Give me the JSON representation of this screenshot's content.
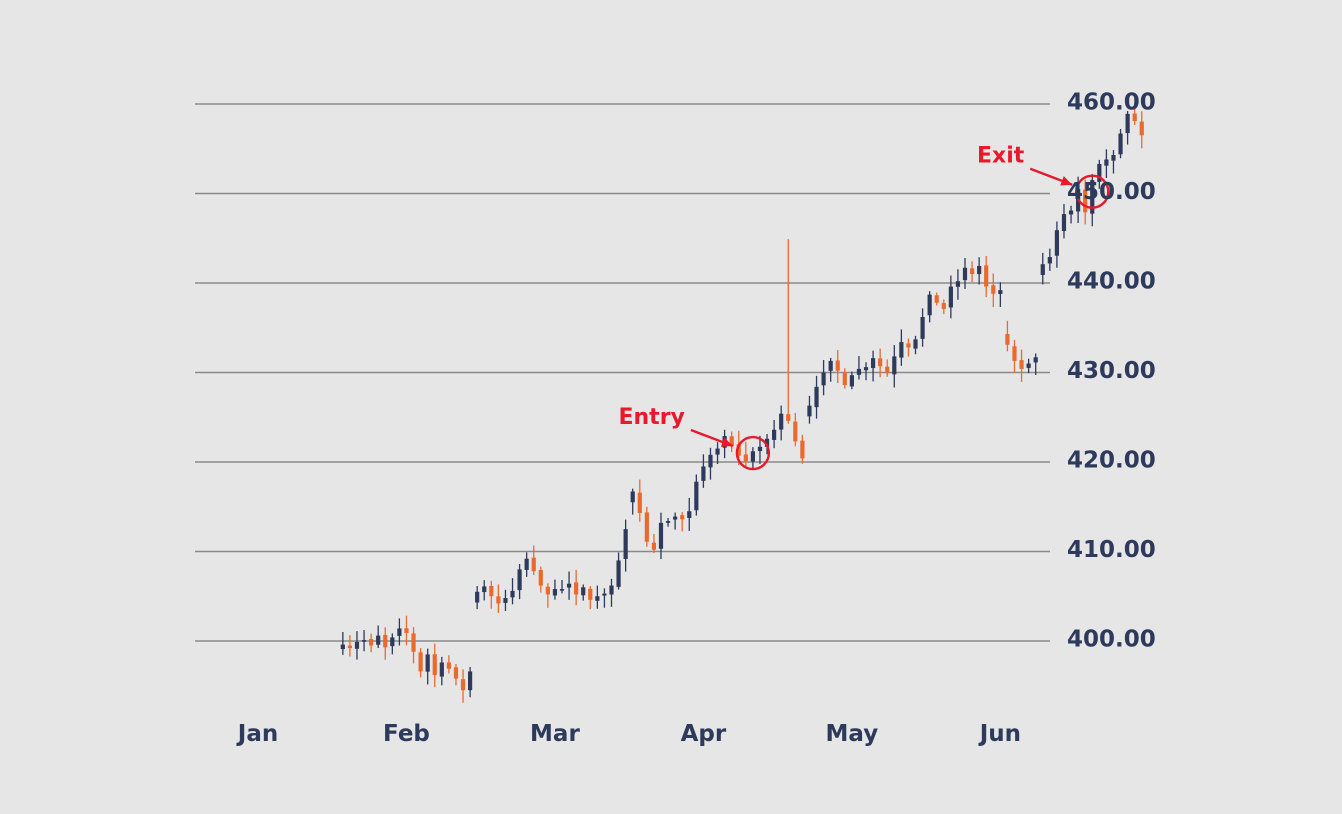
{
  "colors": {
    "background": "#e6e6e6",
    "up_candle": "#2d3a5c",
    "down_candle": "#ea6a2e",
    "grid": "#8a8a8a",
    "axis_text": "#2d3a5c",
    "annotation": "#e8192c"
  },
  "chart_data": {
    "type": "candlestick",
    "title": "",
    "xlabel": "",
    "ylabel": "",
    "ylim": [
      394,
      460
    ],
    "grid": "horizontal",
    "y_axis_side": "right",
    "y_ticks": [
      "400.00",
      "410.00",
      "420.00",
      "430.00",
      "440.00",
      "450.00",
      "460.00"
    ],
    "x_ticks": [
      "Jan",
      "Feb",
      "Mar",
      "Apr",
      "May",
      "Jun"
    ],
    "x_tick_positions": [
      0,
      21,
      42,
      63,
      84,
      105
    ],
    "first_candle_index": 12,
    "closes": [
      399.6,
      399.2,
      399.9,
      400.1,
      399.5,
      400.6,
      399.3,
      400.4,
      401.4,
      400.9,
      398.8,
      396.6,
      398.5,
      396.2,
      397.6,
      396.9,
      395.8,
      394.5,
      396.6,
      405.5,
      406.1,
      405.0,
      404.2,
      404.8,
      405.6,
      408.0,
      409.2,
      407.8,
      406.2,
      405.2,
      405.8,
      405.8,
      406.4,
      405.2,
      406.0,
      404.6,
      405.0,
      405.3,
      406.2,
      409.0,
      412.5,
      416.7,
      414.3,
      411.1,
      410.2,
      413.2,
      413.4,
      413.9,
      413.6,
      414.5,
      417.8,
      419.5,
      420.8,
      421.5,
      422.9,
      421.8,
      420.7,
      420.0,
      421.2,
      421.7,
      422.6,
      423.6,
      425.4,
      424.6,
      422.3,
      420.4,
      426.3,
      428.4,
      430.0,
      431.3,
      430.2,
      428.6,
      429.7,
      430.4,
      430.6,
      431.6,
      430.7,
      429.9,
      431.8,
      433.4,
      432.8,
      433.7,
      436.2,
      438.7,
      437.8,
      437.1,
      439.6,
      440.2,
      441.7,
      441.0,
      441.9,
      439.6,
      438.8,
      439.2,
      433.1,
      431.3,
      430.4,
      431.0,
      431.7,
      442.1,
      442.9,
      445.9,
      447.7,
      448.1,
      450.5,
      447.9,
      451.5,
      453.3,
      453.8,
      454.3,
      456.7,
      458.9,
      458.1,
      456.5
    ],
    "notable_wicks": [
      {
        "index": 75,
        "high": 444.9
      }
    ],
    "annotations": [
      {
        "label": "Entry",
        "index": 70,
        "value": 421.0
      },
      {
        "label": "Exit",
        "index": 118,
        "value": 450.2
      }
    ]
  }
}
